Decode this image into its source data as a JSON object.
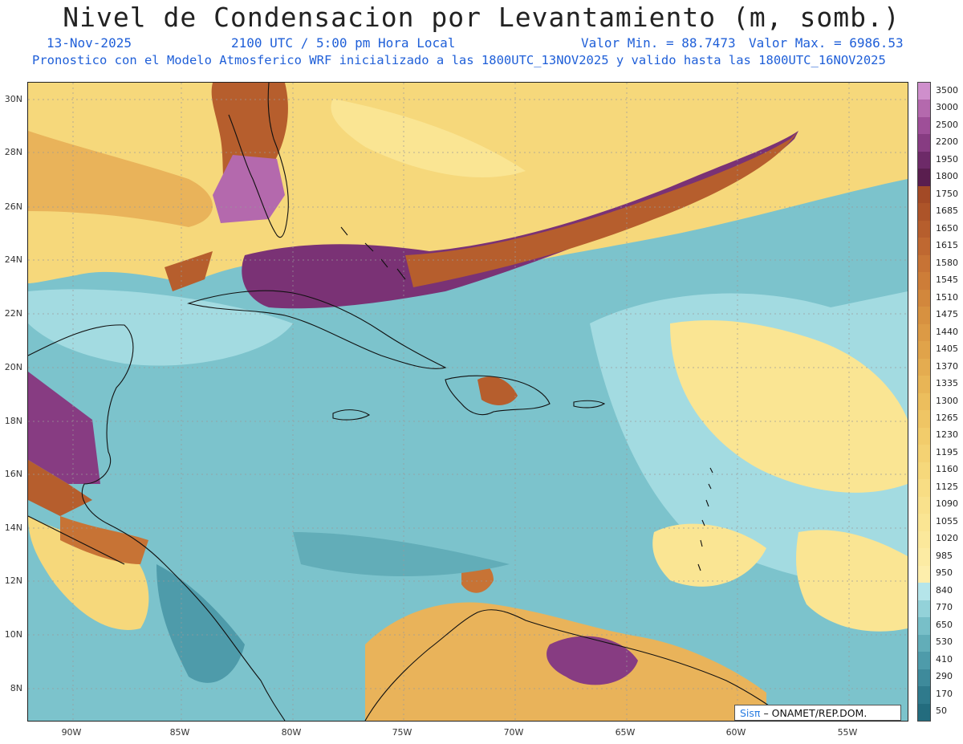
{
  "title": "Nivel de Condensacion por Levantamiento (m, somb.)",
  "header": {
    "date": "13-Nov-2025",
    "time": "2100 UTC / 5:00 pm Hora Local",
    "valor_min": "Valor Min. = 88.7473",
    "valor_max": "Valor Max. = 6986.53",
    "model_info": "Pronostico con el Modelo Atmosferico WRF inicializado a las 1800UTC_13NOV2025 y valido hasta las  1800UTC_16NOV2025"
  },
  "map": {
    "lat_labels": [
      "30N",
      "28N",
      "26N",
      "24N",
      "22N",
      "20N",
      "18N",
      "16N",
      "14N",
      "12N",
      "10N",
      "8N"
    ],
    "lon_labels": [
      "90W",
      "85W",
      "80W",
      "75W",
      "70W",
      "65W",
      "60W",
      "55W"
    ]
  },
  "colorbar": {
    "levels": [
      "3500",
      "3000",
      "2500",
      "2200",
      "1950",
      "1800",
      "1750",
      "1685",
      "1650",
      "1615",
      "1580",
      "1545",
      "1510",
      "1475",
      "1440",
      "1405",
      "1370",
      "1335",
      "1300",
      "1265",
      "1230",
      "1195",
      "1160",
      "1125",
      "1090",
      "1055",
      "1020",
      "985",
      "950",
      "840",
      "770",
      "650",
      "530",
      "410",
      "290",
      "170",
      "50"
    ],
    "colors": [
      "#cf8fcc",
      "#b469ad",
      "#9e4f98",
      "#873c82",
      "#6d2a68",
      "#5a1e4f",
      "#a34a26",
      "#ad5429",
      "#b65e2d",
      "#bf6831",
      "#c77335",
      "#cd7d38",
      "#d2873c",
      "#d79140",
      "#dc9a45",
      "#e0a34a",
      "#e4ac50",
      "#e8b556",
      "#ecbe5d",
      "#efc564",
      "#f2cc6b",
      "#f4d273",
      "#f6d87b",
      "#f8dd84",
      "#f9e18c",
      "#fae593",
      "#fbe89b",
      "#fcebA3",
      "#fdeeac",
      "#b5e5ea",
      "#93d2d9",
      "#78bfc8",
      "#62adb8",
      "#4e9baa",
      "#3e8a9b",
      "#2f7a8c",
      "#236c7e"
    ]
  },
  "credit": {
    "sis": "Sisπ",
    "text": "– ONAMET/REP.DOM."
  }
}
